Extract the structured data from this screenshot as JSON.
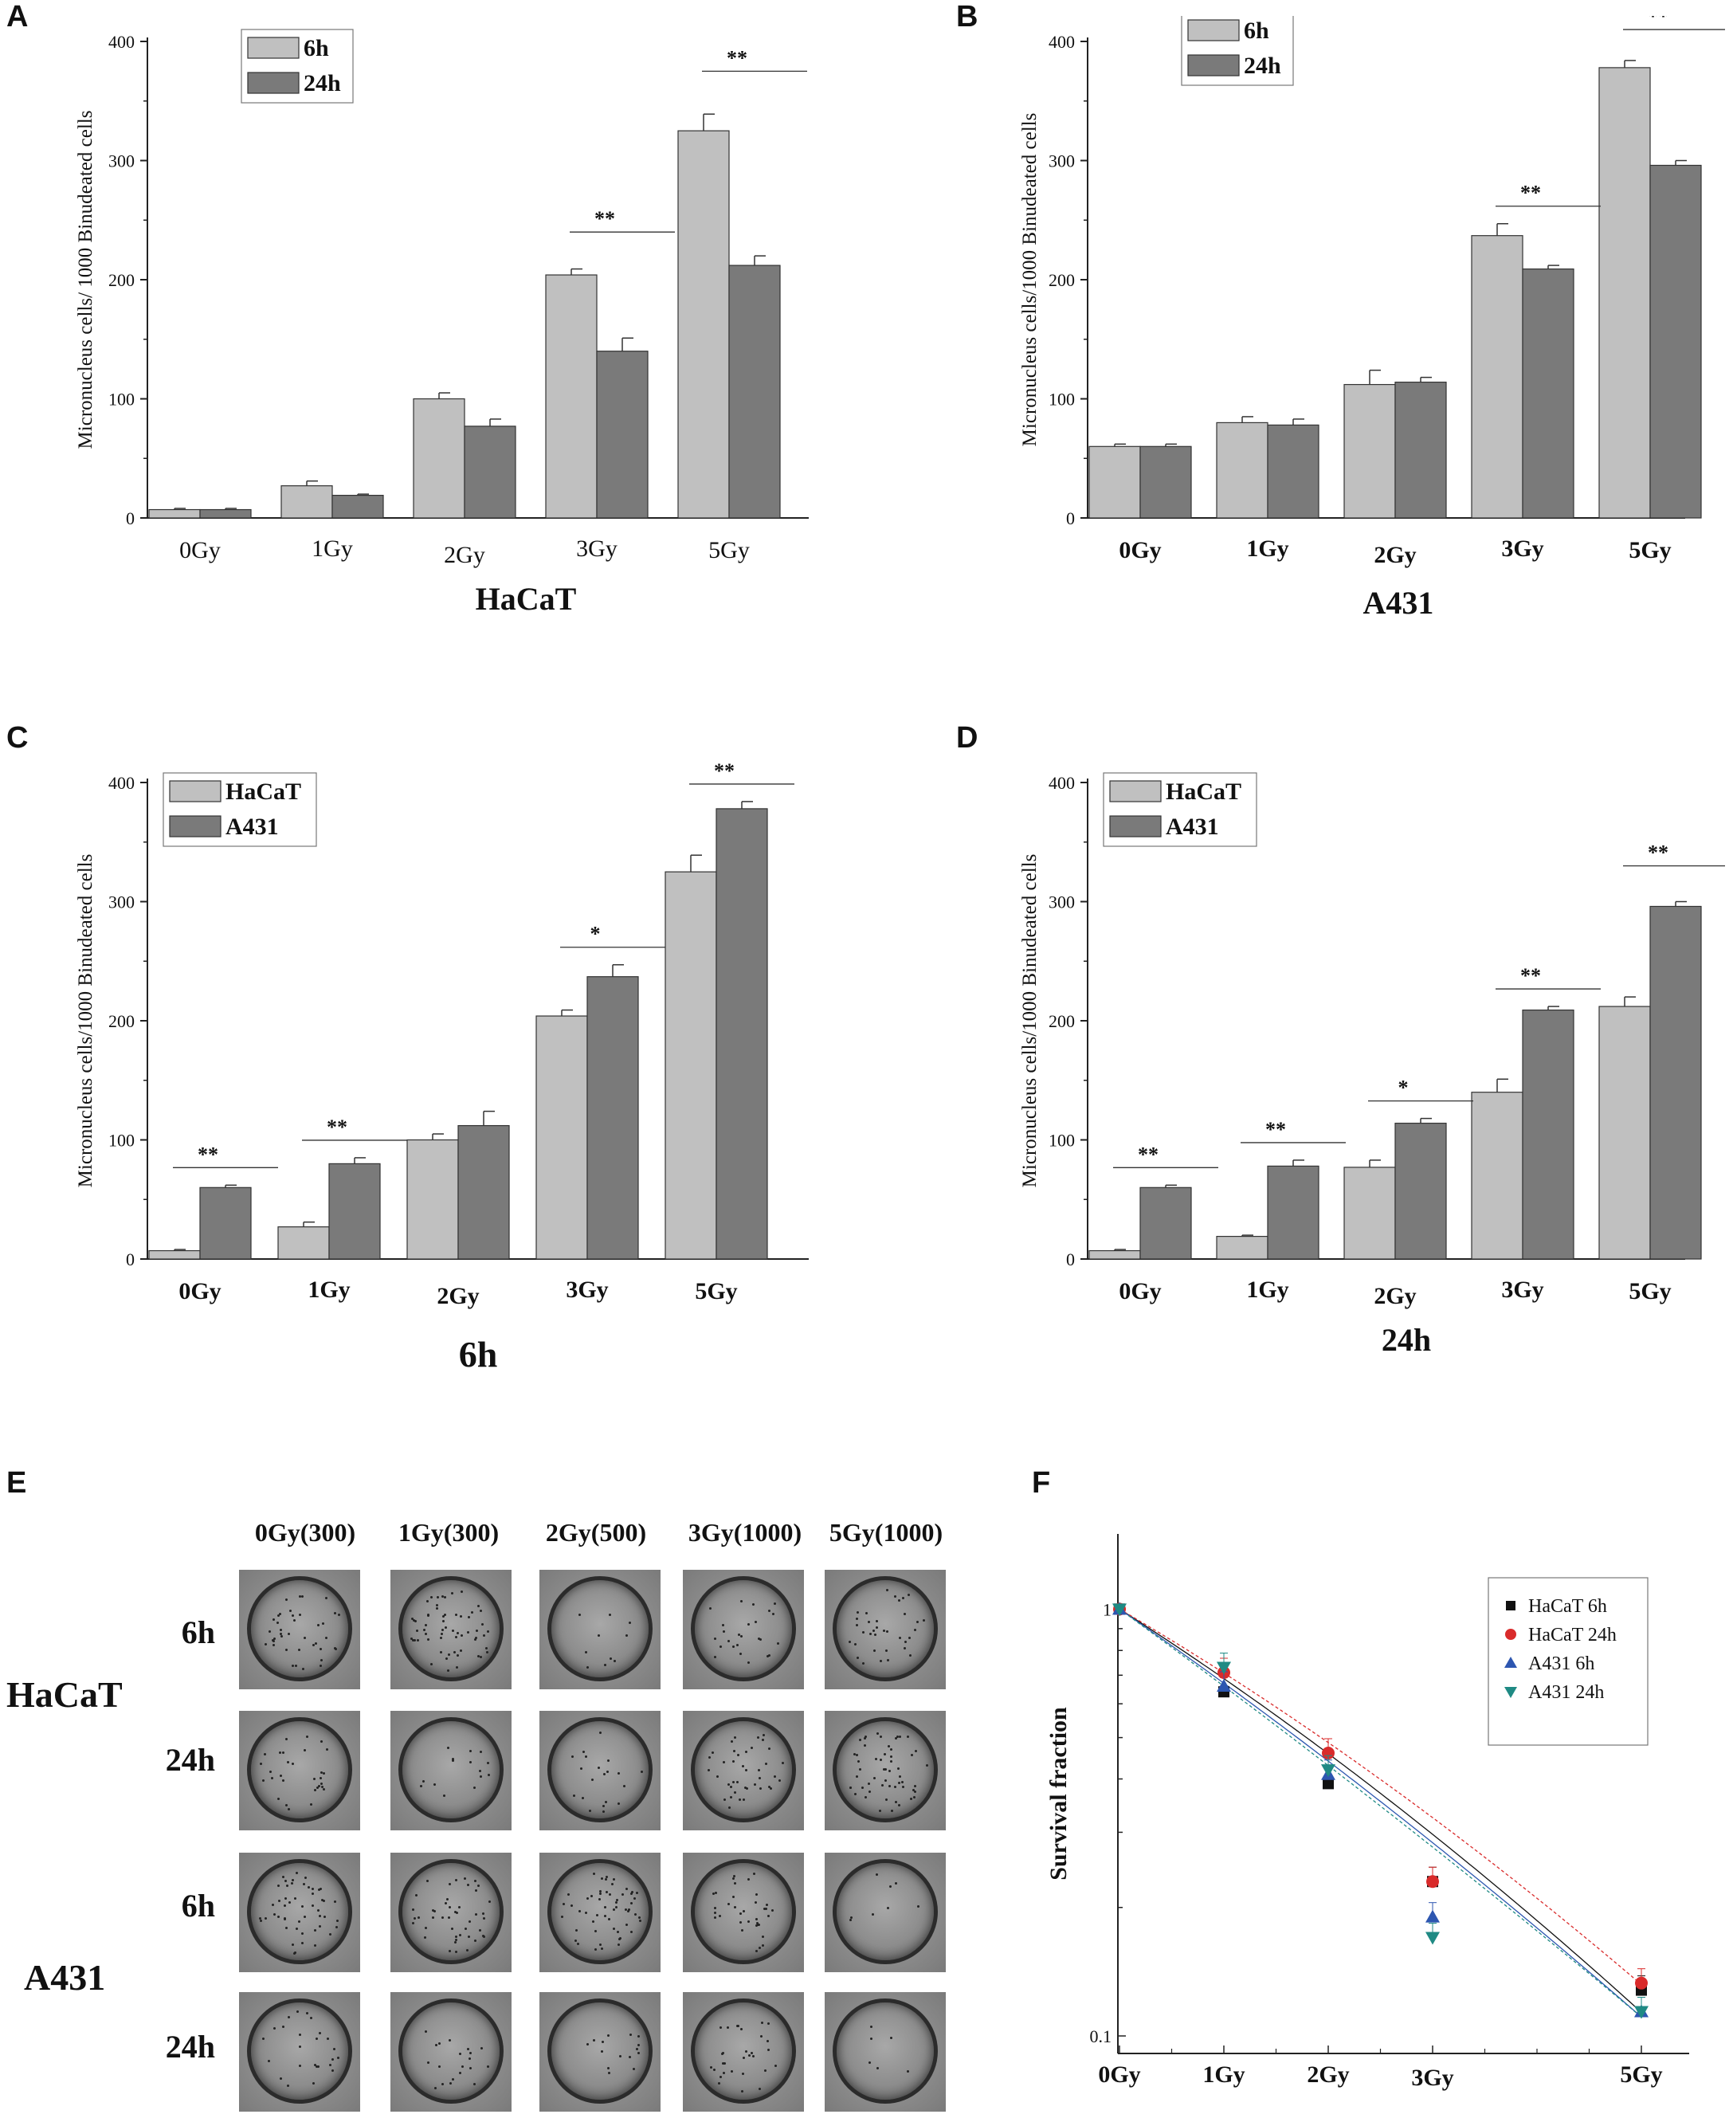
{
  "panel_labels": [
    "A",
    "B",
    "C",
    "D",
    "E",
    "F"
  ],
  "colors": {
    "light": "#c0c0c0",
    "dark": "#7a7a7a"
  },
  "chart_data": [
    {
      "id": "A",
      "type": "bar",
      "title": "HaCaT",
      "ylabel": "Micronucleus cells/ 1000 Binudeated cells",
      "categories": [
        "0Gy",
        "1Gy",
        "2Gy",
        "3Gy",
        "5Gy"
      ],
      "ylim": [
        0,
        400
      ],
      "yticks": [
        "0",
        "100",
        "200",
        "300",
        "400"
      ],
      "series": [
        {
          "name": "6h",
          "values": [
            7,
            27,
            100,
            204,
            325
          ],
          "errors": [
            1,
            4,
            5,
            5,
            14
          ]
        },
        {
          "name": "24h",
          "values": [
            7,
            19,
            77,
            140,
            212
          ],
          "errors": [
            1,
            1,
            6,
            11,
            8
          ]
        }
      ],
      "significance": [
        {
          "group": 3,
          "label": "**"
        },
        {
          "group": 4,
          "label": "**"
        }
      ]
    },
    {
      "id": "B",
      "type": "bar",
      "title": "A431",
      "ylabel": "Micronucleus cells/1000 Binudeated cells",
      "categories": [
        "0Gy",
        "1Gy",
        "2Gy",
        "3Gy",
        "5Gy"
      ],
      "ylim": [
        0,
        400
      ],
      "yticks": [
        "0",
        "100",
        "200",
        "300",
        "400"
      ],
      "series": [
        {
          "name": "6h",
          "values": [
            60,
            80,
            112,
            237,
            378
          ],
          "errors": [
            2,
            5,
            12,
            10,
            6
          ]
        },
        {
          "name": "24h",
          "values": [
            60,
            78,
            114,
            209,
            296
          ],
          "errors": [
            2,
            5,
            4,
            3,
            4
          ]
        }
      ],
      "significance": [
        {
          "group": 3,
          "label": "**"
        },
        {
          "group": 4,
          "label": "**"
        }
      ]
    },
    {
      "id": "C",
      "type": "bar",
      "title": "6h",
      "ylabel": "Micronucleus cells/1000 Binudeated cells",
      "categories": [
        "0Gy",
        "1Gy",
        "2Gy",
        "3Gy",
        "5Gy"
      ],
      "ylim": [
        0,
        400
      ],
      "yticks": [
        "0",
        "100",
        "200",
        "300",
        "400"
      ],
      "series": [
        {
          "name": "HaCaT",
          "values": [
            7,
            27,
            100,
            204,
            325
          ],
          "errors": [
            1,
            4,
            5,
            5,
            14
          ]
        },
        {
          "name": "A431",
          "values": [
            60,
            80,
            112,
            237,
            378
          ],
          "errors": [
            2,
            5,
            12,
            10,
            6
          ]
        }
      ],
      "significance": [
        {
          "group": 0,
          "label": "**"
        },
        {
          "group": 1,
          "label": "**"
        },
        {
          "group": 3,
          "label": "*"
        },
        {
          "group": 4,
          "label": "**"
        }
      ]
    },
    {
      "id": "D",
      "type": "bar",
      "title": "24h",
      "ylabel": "Micronucleus cells/1000 Binudeated cells",
      "categories": [
        "0Gy",
        "1Gy",
        "2Gy",
        "3Gy",
        "5Gy"
      ],
      "ylim": [
        0,
        400
      ],
      "yticks": [
        "0",
        "100",
        "200",
        "300",
        "400"
      ],
      "series": [
        {
          "name": "HaCaT",
          "values": [
            7,
            19,
            77,
            140,
            212
          ],
          "errors": [
            1,
            1,
            6,
            11,
            8
          ]
        },
        {
          "name": "A431",
          "values": [
            60,
            78,
            114,
            209,
            296
          ],
          "errors": [
            2,
            5,
            4,
            3,
            4
          ]
        }
      ],
      "significance": [
        {
          "group": 0,
          "label": "**"
        },
        {
          "group": 1,
          "label": "**"
        },
        {
          "group": 2,
          "label": "*"
        },
        {
          "group": 3,
          "label": "**"
        },
        {
          "group": 4,
          "label": "**"
        }
      ]
    },
    {
      "id": "F",
      "type": "scatter",
      "ylabel": "Survival fraction",
      "yscale": "log",
      "x": [
        0,
        1,
        2,
        3,
        5
      ],
      "xticks": [
        "0Gy",
        "1Gy",
        "2Gy",
        "3Gy",
        "5Gy"
      ],
      "yticks": [
        "1",
        "0.1"
      ],
      "ylim": [
        0.1,
        1.5
      ],
      "series": [
        {
          "name": "HaCaT 6h",
          "color": "#111111",
          "marker": "square",
          "values": [
            1.0,
            0.64,
            0.39,
            0.23,
            0.128
          ]
        },
        {
          "name": "HaCaT 24h",
          "color": "#d92b2b",
          "marker": "circle",
          "values": [
            1.0,
            0.71,
            0.46,
            0.23,
            0.133
          ]
        },
        {
          "name": "A431 6h",
          "color": "#2d56b0",
          "marker": "triangle-up",
          "values": [
            1.0,
            0.66,
            0.41,
            0.19,
            0.114
          ]
        },
        {
          "name": "A431 24h",
          "color": "#1f8a84",
          "marker": "triangle-down",
          "values": [
            1.0,
            0.73,
            0.42,
            0.17,
            0.114
          ]
        }
      ]
    }
  ],
  "clonogenic": {
    "column_headers": [
      "0Gy(300)",
      "1Gy(300)",
      "2Gy(500)",
      "3Gy(1000)",
      "5Gy(1000)"
    ],
    "cell_lines": [
      "HaCaT",
      "A431"
    ],
    "time_labels": [
      "6h",
      "24h",
      "6h",
      "24h"
    ]
  }
}
